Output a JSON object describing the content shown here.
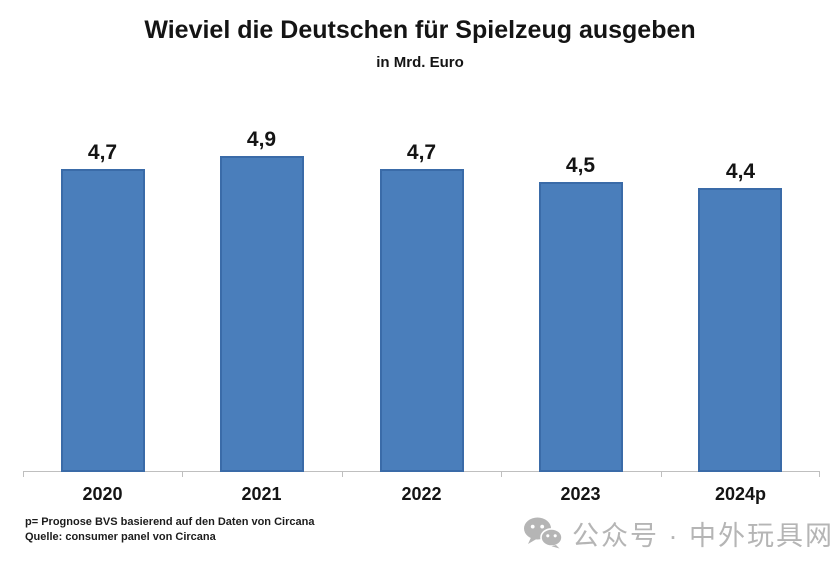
{
  "chart_data": {
    "type": "bar",
    "title": "Wieviel die Deutschen für Spielzeug ausgeben",
    "subtitle": "in Mrd. Euro",
    "categories": [
      "2020",
      "2021",
      "2022",
      "2023",
      "2024p"
    ],
    "values": [
      4.7,
      4.9,
      4.7,
      4.5,
      4.4
    ],
    "value_labels": [
      "4,7",
      "4,9",
      "4,7",
      "4,5",
      "4,4"
    ],
    "xlabel": "",
    "ylabel": "",
    "ylim": [
      0,
      5
    ],
    "grid": false,
    "legend": "none",
    "bar_color": "#4A7EBB",
    "bar_border_color": "#3A6BA8",
    "axis_color": "#BFBFBF",
    "label_color": "#141414"
  },
  "footnotes": {
    "line1": "p= Prognose BVS basierend auf den Daten von Circana",
    "line2": "Quelle: consumer panel von Circana"
  },
  "watermark": {
    "icon": "wechat-icon",
    "text": "公众号 · 中外玩具网",
    "color": "#B5B5B5"
  }
}
